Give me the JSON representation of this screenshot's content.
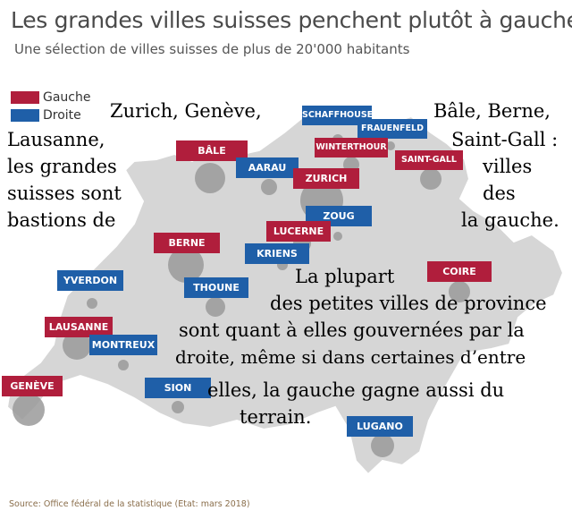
{
  "title": "Les grandes villes suisses penchent plutôt à gauche",
  "subtitle": "Une sélection de villes suisses de plus de 20'000 habitants",
  "legend": [
    {
      "label": "Gauche",
      "color": "#b01e3c"
    },
    {
      "label": "Droite",
      "color": "#1f5fa8"
    }
  ],
  "cities": {
    "bale": "BÂLE",
    "aarau": "AARAU",
    "schaffhouse": "SCHAFFHOUSE",
    "frauenfeld": "FRAUENFELD",
    "winterthour": "WINTERTHOUR",
    "saint_gall": "SAINT-GALL",
    "zurich": "ZURICH",
    "zoug": "ZOUG",
    "lucerne": "LUCERNE",
    "kriens": "KRIENS",
    "berne": "BERNE",
    "thoune": "THOUNE",
    "coire": "COIRE",
    "yverdon": "YVERDON",
    "lausanne": "LAUSANNE",
    "montreux": "MONTREUX",
    "geneve": "GENÈVE",
    "sion": "SION",
    "lugano": "LUGANO"
  },
  "overlay": {
    "top_left_1": "Zurich, Genève,",
    "top_right_1": "Bâle, Berne,",
    "left_1": "Lausanne,",
    "right_1": "Saint-Gall :",
    "left_2": "les grandes",
    "right_2": "villes",
    "left_3": "suisses sont",
    "right_3": "des",
    "left_4": "bastions de",
    "right_4": "la gauche.",
    "center_1": "La plupart",
    "center_2": "des petites villes de province",
    "center_3": "sont quant à elles gouvernées par la",
    "center_4": "droite,  même si dans certaines d’entre",
    "center_5": "elles, la  gauche gagne aussi du",
    "center_6": "terrain."
  },
  "source": "Source: Office fédéral de la statistique (Etat: mars 2018)"
}
